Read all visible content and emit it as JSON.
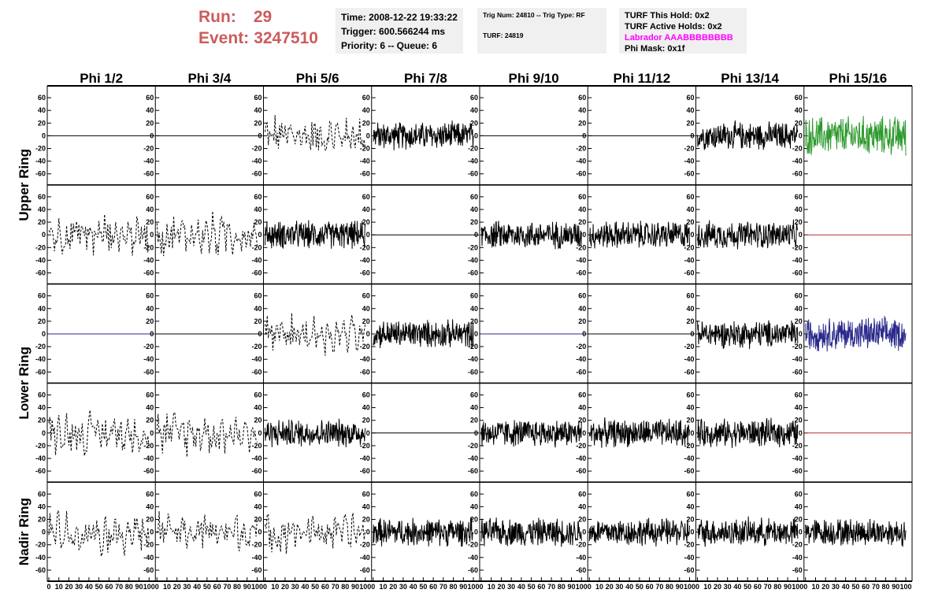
{
  "header": {
    "run_label": "Run:",
    "run_value": "29",
    "event_label": "Event:",
    "event_value": "3247510",
    "time_line": "Time: 2008-12-22 19:33:22",
    "trigger_line": "Trigger: 600.566244 ms",
    "priority_line": "Priority: 6 -- Queue: 6",
    "trig_line": "Trig Num: 24810 -- Trig Type: RF",
    "turf_line": "TURF: 24819",
    "turf_hold_line": "TURF This Hold: 0x2",
    "turf_active_line": "TURF Active Holds: 0x2",
    "labrador_line": "Labrador AAABBBBBBBB",
    "phi_mask_line": "Phi Mask: 0x1f"
  },
  "colors": {
    "run_text": "#cc5c5c",
    "info_bg": "#f0f0f0",
    "labrador": "#ff00ff",
    "trace_black": "#000000",
    "trace_green": "#2e9a2e",
    "trace_blue": "#2a2a8c",
    "trace_red": "#b03030"
  },
  "chart_data": {
    "type": "line",
    "column_titles": [
      "Phi 1/2",
      "Phi 3/4",
      "Phi 5/6",
      "Phi 7/8",
      "Phi 9/10",
      "Phi 11/12",
      "Phi 13/14",
      "Phi 15/16"
    ],
    "ring_labels": [
      "Upper Ring",
      "Lower Ring",
      "Nadir Ring"
    ],
    "ylim": [
      -70,
      70
    ],
    "y_ticks": [
      -60,
      -40,
      -20,
      0,
      20,
      40,
      60
    ],
    "xlim": [
      0,
      100
    ],
    "x_ticks": [
      0,
      10,
      20,
      30,
      40,
      50,
      60,
      70,
      80,
      90,
      100
    ],
    "grid": false,
    "panels": [
      [
        "flat",
        "flat",
        "dashed",
        "solid",
        "flat",
        "flat",
        "solid",
        "green"
      ],
      [
        "dashed",
        "dashed",
        "solid",
        "flat",
        "solid",
        "solid",
        "solid",
        "red-flat"
      ],
      [
        "blue-flat",
        "flat",
        "dashed",
        "solid",
        "blue-flat",
        "flat",
        "solid",
        "blue"
      ],
      [
        "dashed",
        "dashed",
        "solid",
        "flat",
        "solid",
        "solid",
        "solid",
        "red-flat"
      ],
      [
        "dashed",
        "dashed",
        "dashed",
        "solid",
        "solid",
        "solid",
        "solid",
        "solid"
      ]
    ],
    "trace_amplitude": {
      "solid": 25,
      "dashed": 32,
      "green": 35,
      "blue": 30
    }
  }
}
